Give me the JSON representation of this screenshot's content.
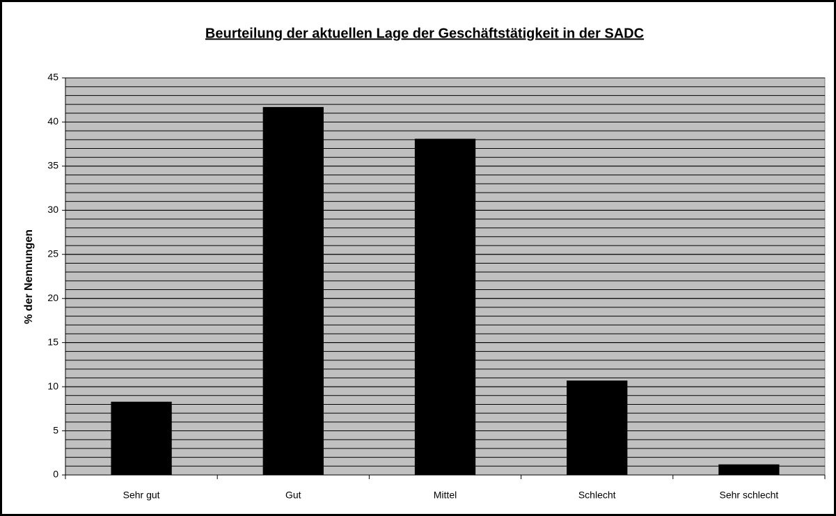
{
  "chart_data": {
    "type": "bar",
    "title": "Beurteilung der aktuellen Lage der Geschäftstätigkeit in der SADC",
    "y_label": "% der Nennungen",
    "categories": [
      "Sehr gut",
      "Gut",
      "Mittel",
      "Schlecht",
      "Sehr schlecht"
    ],
    "values": [
      8.3,
      41.7,
      38.1,
      10.7,
      1.2
    ],
    "color": "#000000",
    "ylim": [
      0,
      45
    ],
    "yticks": [
      0,
      5,
      10,
      15,
      20,
      25,
      30,
      35,
      40,
      45
    ],
    "grid": true,
    "minor_grid_step": 1
  }
}
